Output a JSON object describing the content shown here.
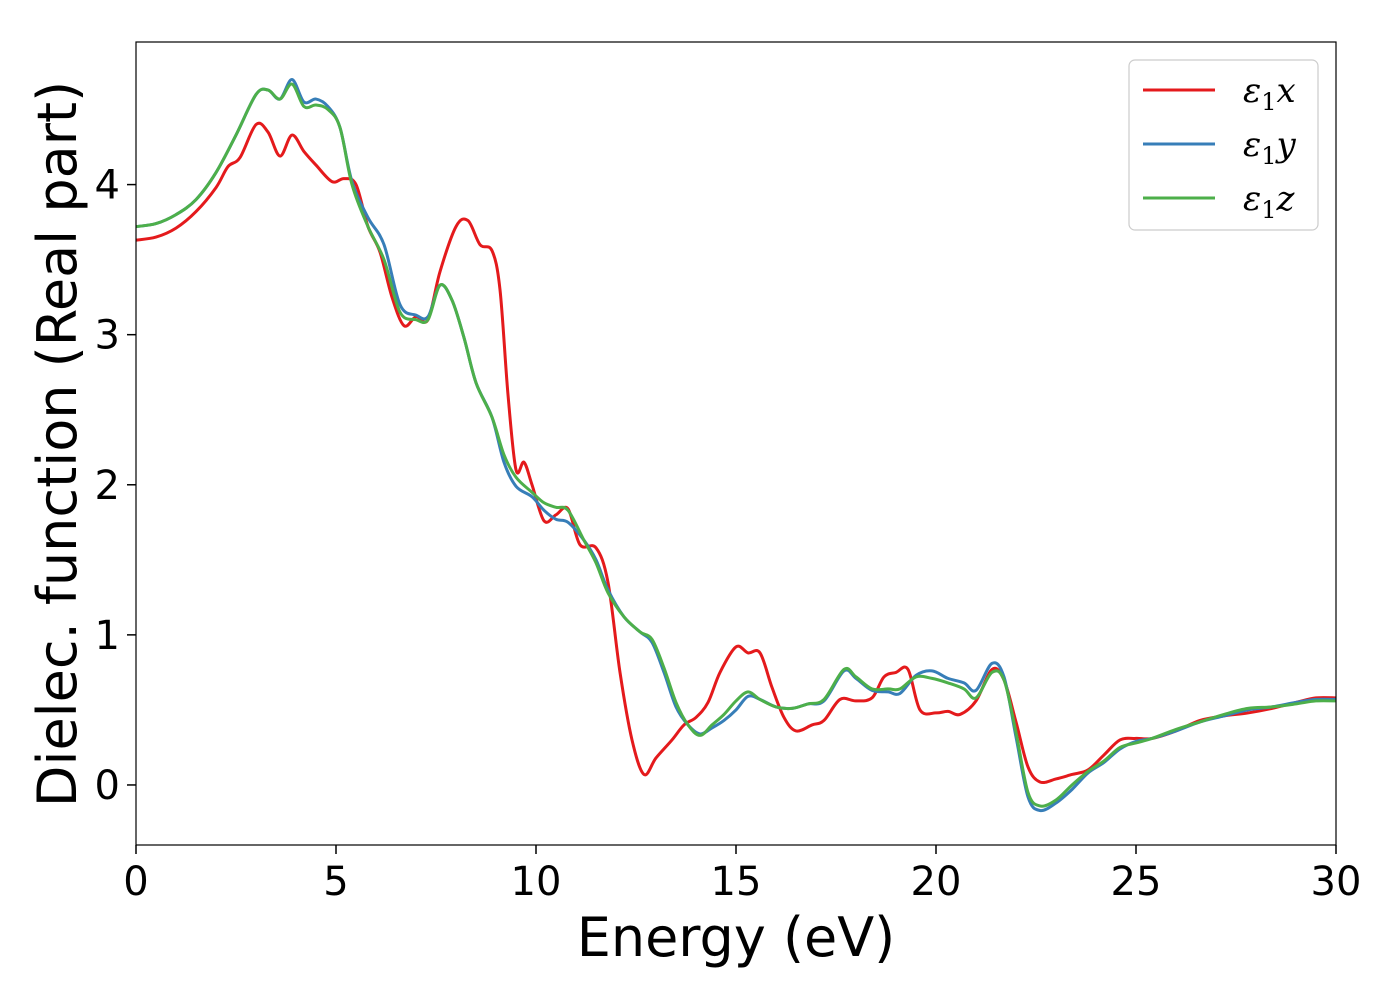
{
  "chart_data": {
    "type": "line",
    "title": "",
    "xlabel": "Energy (eV)",
    "ylabel": "Dielec. function (Real part)",
    "xlim": [
      0,
      30
    ],
    "ylim": [
      -0.4,
      4.95
    ],
    "xticks": [
      0,
      5,
      10,
      15,
      20,
      25,
      30
    ],
    "yticks": [
      0,
      1,
      2,
      3,
      4
    ],
    "xtick_labels": [
      "0",
      "5",
      "10",
      "15",
      "20",
      "25",
      "30"
    ],
    "ytick_labels": [
      "0",
      "1",
      "2",
      "3",
      "4"
    ],
    "grid": false,
    "legend_position": "top-right",
    "series": [
      {
        "name": "ε1x",
        "legend_symbol": "ε",
        "legend_sub": "1",
        "legend_var": "x",
        "color": "#e41a1c",
        "points": [
          [
            0,
            3.63
          ],
          [
            0.5,
            3.65
          ],
          [
            1,
            3.71
          ],
          [
            1.5,
            3.82
          ],
          [
            2,
            3.98
          ],
          [
            2.3,
            4.12
          ],
          [
            2.6,
            4.18
          ],
          [
            3,
            4.4
          ],
          [
            3.3,
            4.35
          ],
          [
            3.6,
            4.19
          ],
          [
            3.9,
            4.33
          ],
          [
            4.2,
            4.22
          ],
          [
            4.5,
            4.13
          ],
          [
            4.9,
            4.02
          ],
          [
            5.2,
            4.04
          ],
          [
            5.5,
            4.0
          ],
          [
            5.8,
            3.72
          ],
          [
            6.1,
            3.55
          ],
          [
            6.4,
            3.25
          ],
          [
            6.7,
            3.06
          ],
          [
            7,
            3.12
          ],
          [
            7.3,
            3.1
          ],
          [
            7.6,
            3.42
          ],
          [
            8,
            3.72
          ],
          [
            8.3,
            3.76
          ],
          [
            8.6,
            3.6
          ],
          [
            8.9,
            3.56
          ],
          [
            9.1,
            3.3
          ],
          [
            9.3,
            2.6
          ],
          [
            9.5,
            2.1
          ],
          [
            9.7,
            2.15
          ],
          [
            9.9,
            2.0
          ],
          [
            10.2,
            1.76
          ],
          [
            10.5,
            1.8
          ],
          [
            10.8,
            1.84
          ],
          [
            11.1,
            1.6
          ],
          [
            11.5,
            1.58
          ],
          [
            11.8,
            1.35
          ],
          [
            12.1,
            0.75
          ],
          [
            12.4,
            0.3
          ],
          [
            12.7,
            0.07
          ],
          [
            13,
            0.18
          ],
          [
            13.4,
            0.3
          ],
          [
            13.7,
            0.4
          ],
          [
            14,
            0.45
          ],
          [
            14.3,
            0.55
          ],
          [
            14.6,
            0.75
          ],
          [
            15,
            0.92
          ],
          [
            15.3,
            0.88
          ],
          [
            15.6,
            0.88
          ],
          [
            15.9,
            0.65
          ],
          [
            16.2,
            0.45
          ],
          [
            16.5,
            0.36
          ],
          [
            16.9,
            0.4
          ],
          [
            17.2,
            0.43
          ],
          [
            17.6,
            0.57
          ],
          [
            18,
            0.56
          ],
          [
            18.4,
            0.58
          ],
          [
            18.7,
            0.72
          ],
          [
            19,
            0.75
          ],
          [
            19.3,
            0.77
          ],
          [
            19.6,
            0.5
          ],
          [
            20,
            0.48
          ],
          [
            20.3,
            0.49
          ],
          [
            20.6,
            0.47
          ],
          [
            21,
            0.56
          ],
          [
            21.4,
            0.77
          ],
          [
            21.7,
            0.7
          ],
          [
            22,
            0.42
          ],
          [
            22.3,
            0.12
          ],
          [
            22.6,
            0.02
          ],
          [
            23,
            0.04
          ],
          [
            23.4,
            0.07
          ],
          [
            23.8,
            0.1
          ],
          [
            24.2,
            0.2
          ],
          [
            24.6,
            0.3
          ],
          [
            25,
            0.31
          ],
          [
            25.4,
            0.31
          ],
          [
            26,
            0.36
          ],
          [
            26.6,
            0.43
          ],
          [
            27.2,
            0.46
          ],
          [
            27.8,
            0.48
          ],
          [
            28.4,
            0.51
          ],
          [
            29,
            0.55
          ],
          [
            29.5,
            0.58
          ],
          [
            30,
            0.58
          ]
        ]
      },
      {
        "name": "ε1y",
        "legend_symbol": "ε",
        "legend_sub": "1",
        "legend_var": "y",
        "color": "#377eb8",
        "points": [
          [
            0,
            3.72
          ],
          [
            0.5,
            3.74
          ],
          [
            1,
            3.8
          ],
          [
            1.5,
            3.9
          ],
          [
            2,
            4.08
          ],
          [
            2.5,
            4.33
          ],
          [
            3,
            4.6
          ],
          [
            3.3,
            4.63
          ],
          [
            3.6,
            4.57
          ],
          [
            3.9,
            4.7
          ],
          [
            4.2,
            4.55
          ],
          [
            4.5,
            4.57
          ],
          [
            4.8,
            4.52
          ],
          [
            5.1,
            4.38
          ],
          [
            5.4,
            4.02
          ],
          [
            5.8,
            3.78
          ],
          [
            6.2,
            3.6
          ],
          [
            6.6,
            3.2
          ],
          [
            7,
            3.13
          ],
          [
            7.3,
            3.12
          ],
          [
            7.6,
            3.33
          ],
          [
            7.9,
            3.23
          ],
          [
            8.2,
            2.98
          ],
          [
            8.5,
            2.68
          ],
          [
            8.9,
            2.45
          ],
          [
            9.2,
            2.15
          ],
          [
            9.5,
            1.99
          ],
          [
            9.9,
            1.92
          ],
          [
            10.2,
            1.83
          ],
          [
            10.5,
            1.77
          ],
          [
            10.8,
            1.75
          ],
          [
            11.2,
            1.63
          ],
          [
            11.5,
            1.5
          ],
          [
            11.8,
            1.3
          ],
          [
            12.2,
            1.12
          ],
          [
            12.6,
            1.02
          ],
          [
            12.9,
            0.95
          ],
          [
            13.2,
            0.75
          ],
          [
            13.5,
            0.52
          ],
          [
            13.8,
            0.4
          ],
          [
            14.1,
            0.34
          ],
          [
            14.4,
            0.38
          ],
          [
            14.7,
            0.43
          ],
          [
            15,
            0.5
          ],
          [
            15.3,
            0.59
          ],
          [
            15.6,
            0.57
          ],
          [
            16,
            0.52
          ],
          [
            16.4,
            0.51
          ],
          [
            16.8,
            0.54
          ],
          [
            17.2,
            0.56
          ],
          [
            17.7,
            0.76
          ],
          [
            18,
            0.71
          ],
          [
            18.4,
            0.63
          ],
          [
            18.8,
            0.62
          ],
          [
            19.1,
            0.61
          ],
          [
            19.5,
            0.73
          ],
          [
            19.9,
            0.76
          ],
          [
            20.3,
            0.71
          ],
          [
            20.7,
            0.68
          ],
          [
            21,
            0.63
          ],
          [
            21.4,
            0.81
          ],
          [
            21.7,
            0.72
          ],
          [
            22,
            0.32
          ],
          [
            22.3,
            -0.08
          ],
          [
            22.6,
            -0.17
          ],
          [
            23,
            -0.12
          ],
          [
            23.4,
            -0.03
          ],
          [
            23.8,
            0.08
          ],
          [
            24.2,
            0.15
          ],
          [
            24.6,
            0.24
          ],
          [
            25,
            0.29
          ],
          [
            25.4,
            0.31
          ],
          [
            26,
            0.36
          ],
          [
            26.6,
            0.42
          ],
          [
            27.2,
            0.46
          ],
          [
            27.8,
            0.5
          ],
          [
            28.4,
            0.52
          ],
          [
            29,
            0.55
          ],
          [
            29.5,
            0.57
          ],
          [
            30,
            0.57
          ]
        ]
      },
      {
        "name": "ε1z",
        "legend_symbol": "ε",
        "legend_sub": "1",
        "legend_var": "z",
        "color": "#4daf4a",
        "points": [
          [
            0,
            3.72
          ],
          [
            0.5,
            3.74
          ],
          [
            1,
            3.8
          ],
          [
            1.5,
            3.9
          ],
          [
            2,
            4.08
          ],
          [
            2.5,
            4.33
          ],
          [
            3,
            4.6
          ],
          [
            3.3,
            4.63
          ],
          [
            3.6,
            4.57
          ],
          [
            3.9,
            4.67
          ],
          [
            4.2,
            4.52
          ],
          [
            4.5,
            4.53
          ],
          [
            4.8,
            4.5
          ],
          [
            5.1,
            4.38
          ],
          [
            5.4,
            4.0
          ],
          [
            5.8,
            3.72
          ],
          [
            6.2,
            3.5
          ],
          [
            6.6,
            3.15
          ],
          [
            7,
            3.1
          ],
          [
            7.3,
            3.1
          ],
          [
            7.6,
            3.33
          ],
          [
            7.9,
            3.23
          ],
          [
            8.2,
            2.98
          ],
          [
            8.5,
            2.68
          ],
          [
            8.9,
            2.45
          ],
          [
            9.2,
            2.2
          ],
          [
            9.5,
            2.05
          ],
          [
            9.9,
            1.95
          ],
          [
            10.2,
            1.88
          ],
          [
            10.5,
            1.85
          ],
          [
            10.8,
            1.83
          ],
          [
            11.2,
            1.63
          ],
          [
            11.5,
            1.48
          ],
          [
            11.8,
            1.28
          ],
          [
            12.2,
            1.12
          ],
          [
            12.6,
            1.02
          ],
          [
            12.9,
            0.97
          ],
          [
            13.2,
            0.78
          ],
          [
            13.5,
            0.55
          ],
          [
            13.8,
            0.4
          ],
          [
            14.1,
            0.33
          ],
          [
            14.4,
            0.4
          ],
          [
            14.7,
            0.47
          ],
          [
            15,
            0.56
          ],
          [
            15.3,
            0.62
          ],
          [
            15.6,
            0.57
          ],
          [
            16,
            0.52
          ],
          [
            16.4,
            0.51
          ],
          [
            16.8,
            0.54
          ],
          [
            17.2,
            0.57
          ],
          [
            17.7,
            0.77
          ],
          [
            18,
            0.72
          ],
          [
            18.4,
            0.64
          ],
          [
            18.8,
            0.64
          ],
          [
            19.1,
            0.64
          ],
          [
            19.5,
            0.72
          ],
          [
            19.9,
            0.71
          ],
          [
            20.3,
            0.68
          ],
          [
            20.7,
            0.64
          ],
          [
            21,
            0.58
          ],
          [
            21.4,
            0.75
          ],
          [
            21.7,
            0.7
          ],
          [
            22,
            0.35
          ],
          [
            22.3,
            -0.05
          ],
          [
            22.6,
            -0.14
          ],
          [
            23,
            -0.1
          ],
          [
            23.4,
            0.0
          ],
          [
            23.8,
            0.09
          ],
          [
            24.2,
            0.16
          ],
          [
            24.6,
            0.25
          ],
          [
            25,
            0.28
          ],
          [
            25.4,
            0.31
          ],
          [
            26,
            0.37
          ],
          [
            26.6,
            0.42
          ],
          [
            27.2,
            0.47
          ],
          [
            27.8,
            0.51
          ],
          [
            28.4,
            0.52
          ],
          [
            29,
            0.54
          ],
          [
            29.5,
            0.56
          ],
          [
            30,
            0.56
          ]
        ]
      }
    ]
  }
}
